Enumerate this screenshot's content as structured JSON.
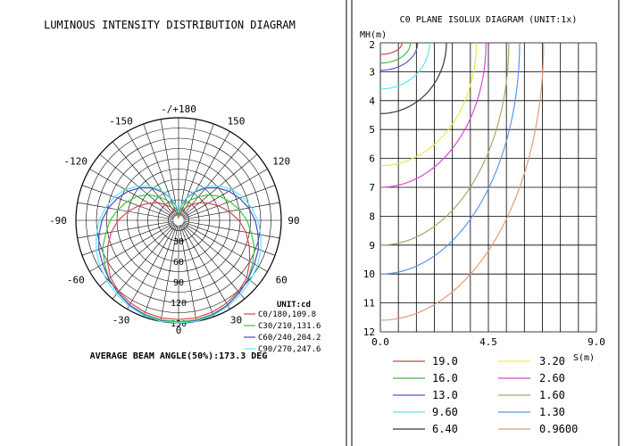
{
  "left_panel": {
    "title": "LUMINOUS INTENSITY DISTRIBUTION DIAGRAM",
    "angle_labels": [
      "-/+180",
      "-150",
      "150",
      "-120",
      "120",
      "-90",
      "90",
      "-60",
      "60",
      "-30",
      "30",
      "0"
    ],
    "radial_labels": [
      "30",
      "60",
      "90",
      "120",
      "150"
    ],
    "unit_label": "UNIT:cd",
    "legend": [
      "C0/180,109.8",
      "C30/210,131.6",
      "C60/240,204.2",
      "C90/270,247.6"
    ],
    "footer": "AVERAGE BEAM ANGLE(50%):173.3 DEG"
  },
  "right_panel": {
    "title": "C0 PLANE ISOLUX DIAGRAM (UNIT:1x)",
    "y_axis_label": "MH(m)",
    "y_ticks": [
      "2",
      "3",
      "4",
      "5",
      "6",
      "7",
      "8",
      "9",
      "10",
      "11",
      "12"
    ],
    "x_ticks": [
      "0.0",
      "4.5",
      "9.0"
    ],
    "x_axis_label": "S(m)",
    "legend": [
      {
        "value": "19.0",
        "color": "#c84848"
      },
      {
        "value": "3.20",
        "color": "#f0f048"
      },
      {
        "value": "16.0",
        "color": "#48b848"
      },
      {
        "value": "2.60",
        "color": "#d848d8"
      },
      {
        "value": "13.0",
        "color": "#5858c8"
      },
      {
        "value": "1.60",
        "color": "#a8a868"
      },
      {
        "value": "9.60",
        "color": "#58e8e8"
      },
      {
        "value": "1.30",
        "color": "#5898e8"
      },
      {
        "value": "6.40",
        "color": "#383838"
      },
      {
        "value": "0.9600",
        "color": "#e89878"
      }
    ]
  },
  "chart_data": [
    {
      "type": "polar",
      "title": "LUMINOUS INTENSITY DISTRIBUTION DIAGRAM",
      "angle_unit": "deg",
      "radial_max": 150,
      "radial_ticks": [
        30,
        60,
        90,
        120,
        150
      ],
      "unit": "cd",
      "series": [
        {
          "name": "C0/180,109.8",
          "color": "#d84848",
          "r": [
            145,
            145,
            143,
            140,
            136,
            130,
            120,
            110,
            100,
            88,
            75,
            62,
            50,
            40,
            30,
            22,
            14,
            8,
            4
          ]
        },
        {
          "name": "C30/210,131.6",
          "color": "#38c838",
          "r": [
            148,
            148,
            146,
            143,
            138,
            133,
            125,
            118,
            108,
            100,
            90,
            80,
            70,
            58,
            45,
            34,
            24,
            14,
            6
          ]
        },
        {
          "name": "C60/240,204.2",
          "color": "#4848c8",
          "r": [
            150,
            149,
            147,
            143,
            138,
            133,
            128,
            124,
            118,
            112,
            104,
            95,
            85,
            74,
            62,
            48,
            35,
            22,
            10
          ]
        },
        {
          "name": "C90/270,247.6",
          "color": "#58e8e8",
          "r": [
            150,
            150,
            148,
            145,
            141,
            137,
            133,
            128,
            122,
            116,
            108,
            100,
            90,
            78,
            65,
            50,
            36,
            24,
            12
          ]
        }
      ],
      "angles": [
        0,
        10,
        20,
        30,
        40,
        50,
        60,
        70,
        80,
        90,
        100,
        110,
        120,
        130,
        140,
        150,
        160,
        170,
        180
      ],
      "footer": "AVERAGE BEAM ANGLE(50%):173.3 DEG"
    },
    {
      "type": "contour",
      "title": "C0 PLANE ISOLUX DIAGRAM (UNIT:1x)",
      "xlabel": "S(m)",
      "ylabel": "MH(m)",
      "xlim": [
        0,
        9
      ],
      "ylim": [
        2,
        12
      ],
      "y_inverted": true,
      "unit": "lx",
      "levels": [
        {
          "value": "19.0",
          "color": "#c84848",
          "s_max": 0.9,
          "h_edge": 2.4
        },
        {
          "value": "16.0",
          "color": "#48b848",
          "s_max": 1.25,
          "h_edge": 2.7
        },
        {
          "value": "13.0",
          "color": "#5858c8",
          "s_max": 1.55,
          "h_edge": 2.95
        },
        {
          "value": "9.60",
          "color": "#58e8e8",
          "s_max": 2.05,
          "h_edge": 3.6
        },
        {
          "value": "6.40",
          "color": "#383838",
          "s_max": 2.75,
          "h_edge": 4.45
        },
        {
          "value": "3.20",
          "color": "#e8e848",
          "s_max": 4.0,
          "h_edge": 6.25
        },
        {
          "value": "2.60",
          "color": "#d848d8",
          "s_max": 4.4,
          "h_edge": 7.0
        },
        {
          "value": "1.60",
          "color": "#a8a868",
          "s_max": 5.35,
          "h_edge": 9.0
        },
        {
          "value": "1.30",
          "color": "#5898e8",
          "s_max": 5.8,
          "h_edge": 10.0
        },
        {
          "value": "0.9600",
          "color": "#e89878",
          "s_max": 6.8,
          "h_edge": 11.6
        }
      ]
    }
  ]
}
